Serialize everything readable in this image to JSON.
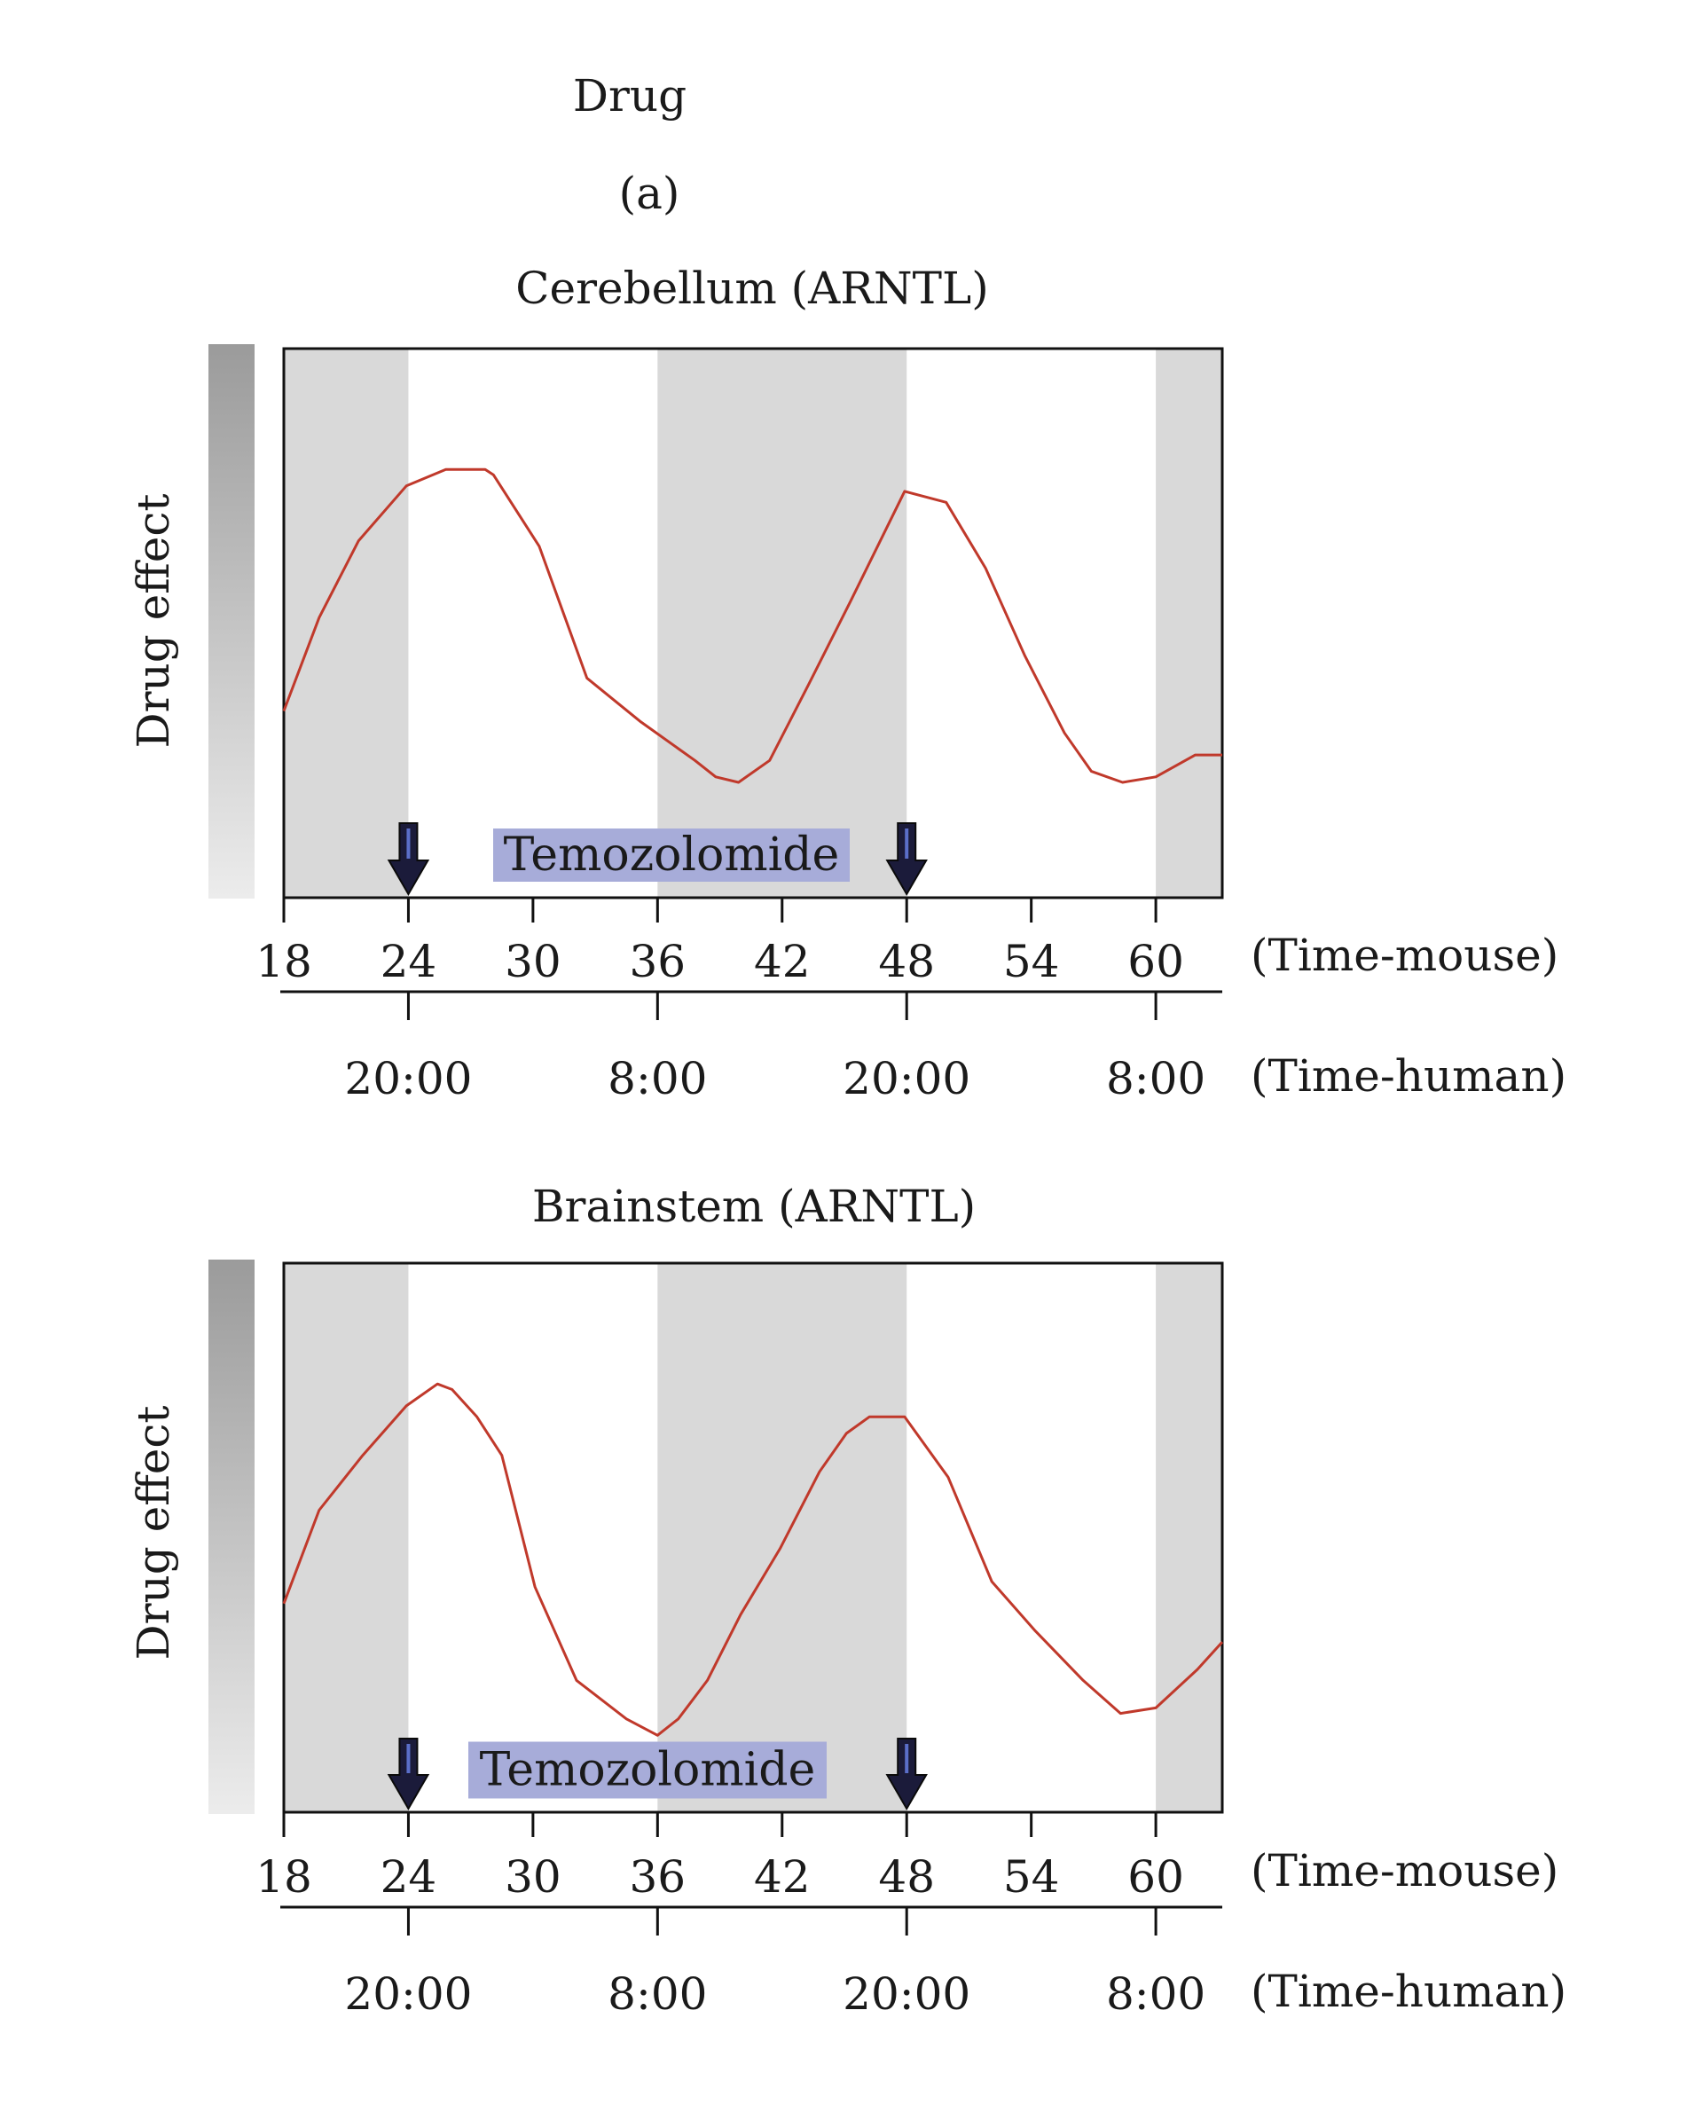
{
  "figure": {
    "heading": "Drug",
    "panel_label": "(a)"
  },
  "chart_data": [
    {
      "type": "line",
      "title": "Cerebellum (ARNTL)",
      "ylabel": "Drug effect",
      "xlabel": "(Time-mouse)",
      "secondary_xlabel": "(Time-human)",
      "xlim": [
        18,
        63.2
      ],
      "ylim": [
        0,
        1
      ],
      "x_ticks": [
        18,
        24,
        30,
        36,
        42,
        48,
        54,
        60
      ],
      "human_ticks": [
        {
          "x": 24,
          "label": "20:00"
        },
        {
          "x": 36,
          "label": "8:00"
        },
        {
          "x": 48,
          "label": "20:00"
        },
        {
          "x": 60,
          "label": "8:00"
        }
      ],
      "dark_periods": [
        [
          18,
          24
        ],
        [
          36,
          48
        ],
        [
          60,
          63.2
        ]
      ],
      "drug_label": "Temozolomide",
      "drug_doses": [
        24,
        48
      ],
      "series": [
        {
          "color": "#c0392b",
          "x": [
            18,
            19.7,
            21.6,
            23.9,
            25.8,
            27.7,
            28.1,
            30.3,
            32.6,
            35.2,
            37.8,
            38.8,
            39.9,
            41.4,
            43.3,
            45.3,
            47.9,
            49.9,
            51.8,
            53.7,
            55.6,
            56.9,
            58.4,
            60.0,
            61.9,
            63.2
          ],
          "y": [
            0.34,
            0.51,
            0.65,
            0.75,
            0.78,
            0.78,
            0.77,
            0.64,
            0.4,
            0.32,
            0.25,
            0.22,
            0.21,
            0.25,
            0.39,
            0.54,
            0.74,
            0.72,
            0.6,
            0.44,
            0.3,
            0.23,
            0.21,
            0.22,
            0.26,
            0.26
          ]
        }
      ]
    },
    {
      "type": "line",
      "title": "Brainstem (ARNTL)",
      "ylabel": "Drug effect",
      "xlabel": "(Time-mouse)",
      "secondary_xlabel": "(Time-human)",
      "xlim": [
        18,
        63.2
      ],
      "ylim": [
        0,
        1
      ],
      "x_ticks": [
        18,
        24,
        30,
        36,
        42,
        48,
        54,
        60
      ],
      "human_ticks": [
        {
          "x": 24,
          "label": "20:00"
        },
        {
          "x": 36,
          "label": "8:00"
        },
        {
          "x": 48,
          "label": "20:00"
        },
        {
          "x": 60,
          "label": "8:00"
        }
      ],
      "dark_periods": [
        [
          18,
          24
        ],
        [
          36,
          48
        ],
        [
          60,
          63.2
        ]
      ],
      "drug_label": "Temozolomide",
      "drug_doses": [
        24,
        48
      ],
      "series": [
        {
          "color": "#c0392b",
          "x": [
            18,
            19.7,
            21.8,
            23.9,
            25.4,
            26.1,
            27.3,
            28.5,
            30.1,
            32.1,
            34.5,
            36.0,
            37.0,
            38.4,
            40.0,
            41.9,
            43.8,
            45.1,
            46.2,
            47.9,
            50.0,
            52.1,
            54.2,
            56.5,
            58.3,
            60.0,
            62.0,
            63.2
          ],
          "y": [
            0.38,
            0.55,
            0.65,
            0.74,
            0.78,
            0.77,
            0.72,
            0.65,
            0.41,
            0.24,
            0.17,
            0.14,
            0.17,
            0.24,
            0.36,
            0.48,
            0.62,
            0.69,
            0.72,
            0.72,
            0.61,
            0.42,
            0.33,
            0.24,
            0.18,
            0.19,
            0.26,
            0.31
          ]
        }
      ]
    }
  ]
}
